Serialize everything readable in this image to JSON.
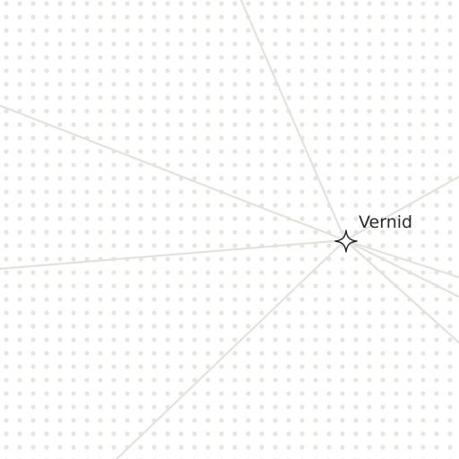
{
  "map": {
    "style": {
      "background": "#ffffff",
      "dot_color": "#e6e6e0",
      "road_color": "#e2e2de",
      "marker_stroke": "#222222"
    },
    "place": {
      "name": "Vernid",
      "icon": "four-point-star-icon"
    }
  }
}
